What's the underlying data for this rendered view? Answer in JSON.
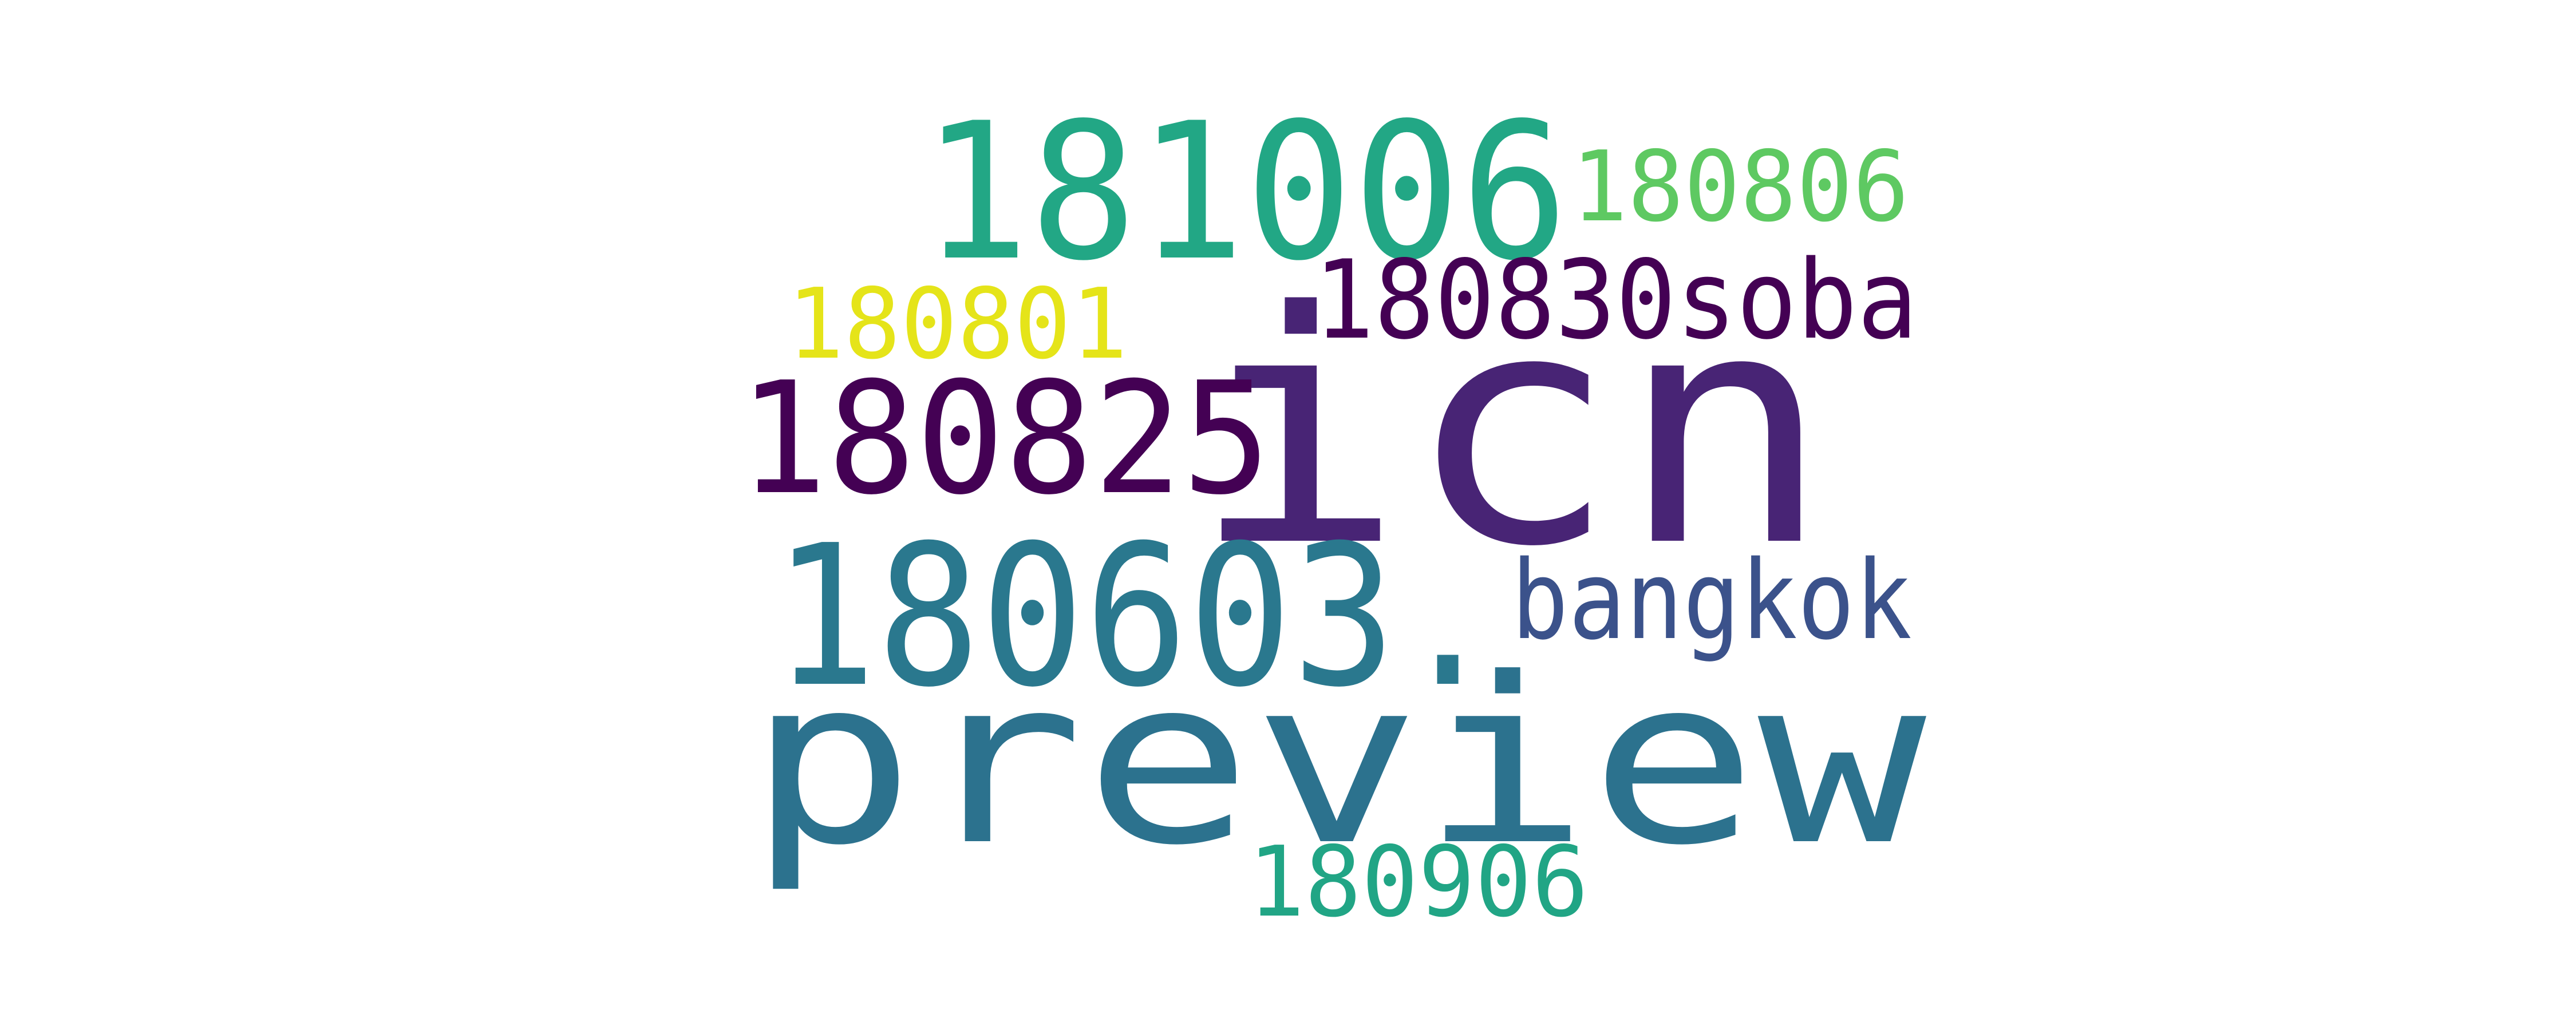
{
  "words": [
    {
      "text": "icn",
      "color": "#482475"
    },
    {
      "text": "preview",
      "color": "#2c728e"
    },
    {
      "text": "181006",
      "color": "#22a785"
    },
    {
      "text": "180603.",
      "color": "#2a788e"
    },
    {
      "text": "180825",
      "color": "#440154"
    },
    {
      "text": "180830soba",
      "color": "#440154"
    },
    {
      "text": "bangkok",
      "color": "#3b528b"
    },
    {
      "text": "180806",
      "color": "#5ec962"
    },
    {
      "text": "180801",
      "color": "#e5e419"
    },
    {
      "text": "180906",
      "color": "#21a585"
    }
  ]
}
